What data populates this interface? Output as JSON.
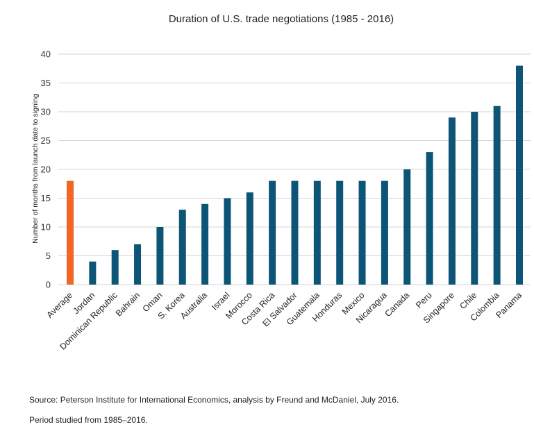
{
  "chart_data": {
    "type": "bar",
    "title": "Duration of U.S. trade negotiations (1985 - 2016)",
    "ylabel": "Number of months from launch date to signing",
    "xlabel": "",
    "ylim": [
      0,
      40
    ],
    "yticks": [
      0,
      5,
      10,
      15,
      20,
      25,
      30,
      35,
      40
    ],
    "grid": true,
    "legend": "none",
    "categories": [
      "Average",
      "Jordan",
      "Dominican Republic",
      "Bahrain",
      "Oman",
      "S. Korea",
      "Australia",
      "Israel",
      "Morocco",
      "Costa Rica",
      "El Salvador",
      "Guatemala",
      "Honduras",
      "Mexico",
      "Nicaragua",
      "Canada",
      "Peru",
      "Singapore",
      "Chile",
      "Colombia",
      "Panama"
    ],
    "values": [
      18,
      4,
      6,
      7,
      10,
      13,
      14,
      15,
      16,
      18,
      18,
      18,
      18,
      18,
      18,
      20,
      23,
      29,
      30,
      31,
      38
    ],
    "colors": {
      "average": "#f26522",
      "country": "#0c5577",
      "grid": "#d4d4d4"
    }
  },
  "notes": {
    "source": "Source: Peterson Institute for International Economics, analysis by Freund and McDaniel, July 2016.",
    "period": "Period studied from 1985–2016."
  }
}
